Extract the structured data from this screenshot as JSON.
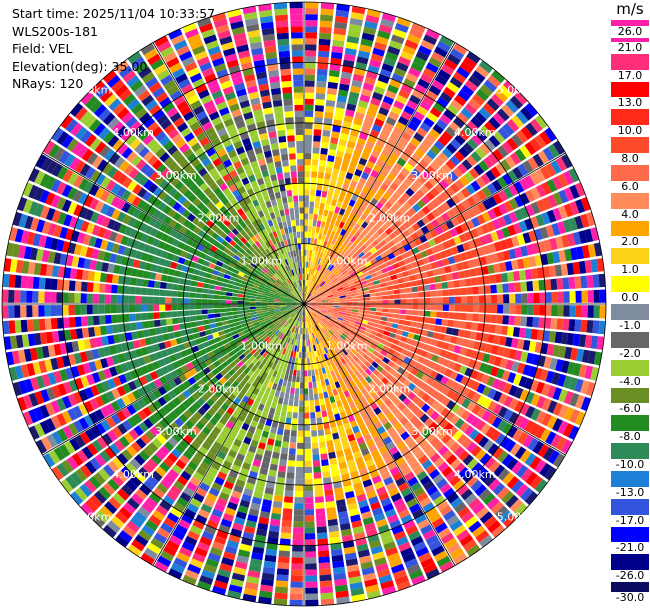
{
  "info": {
    "start_time": "Start time: 2025/11/04 10:33:57",
    "site": "WLS200s-181",
    "field": "Field: VEL",
    "elevation": "Elevation(deg): 35.00",
    "nrays": "NRays: 120"
  },
  "colorbar": {
    "unit": "m/s",
    "ticks": [
      "26.0",
      "21.0",
      "17.0",
      "13.0",
      "10.0",
      "8.0",
      "6.0",
      "4.0",
      "2.0",
      "1.0",
      "0.0",
      "-1.0",
      "-2.0",
      "-4.0",
      "-6.0",
      "-8.0",
      "-10.0",
      "-13.0",
      "-17.0",
      "-21.0",
      "-26.0",
      "-30.0"
    ],
    "colors": [
      "#ff1fa9",
      "#ff2d7a",
      "#ff0000",
      "#ff2a1a",
      "#ff4a2a",
      "#ff6a4a",
      "#ff8c5a",
      "#ffa500",
      "#ffd21a",
      "#ffff00",
      "#7f8c9f",
      "#666666",
      "#9acd32",
      "#6b8e23",
      "#228b22",
      "#2e8b57",
      "#1e7fd6",
      "#3355dd",
      "#0000ff",
      "#00008b",
      "#0a0a60",
      "#191970"
    ]
  },
  "chart_data": {
    "type": "heatmap",
    "projection": "polar PPI",
    "field": "VEL",
    "units": "m/s",
    "n_rays": 120,
    "elevation_deg": 35.0,
    "range_rings_km": [
      1.0,
      2.0,
      3.0,
      4.0,
      5.0
    ],
    "ring_labels": [
      "1.00km",
      "2.00km",
      "3.00km",
      "4.00km",
      "5.00km"
    ],
    "pattern": "velocity dipole: negative (blue/green) toward the west, positive (red/orange) toward the east, yellow near zero along north-south; noisy random colors beyond about 3 km",
    "clean_range_km": 3.0,
    "value_range": [
      -30.0,
      26.0
    ]
  }
}
